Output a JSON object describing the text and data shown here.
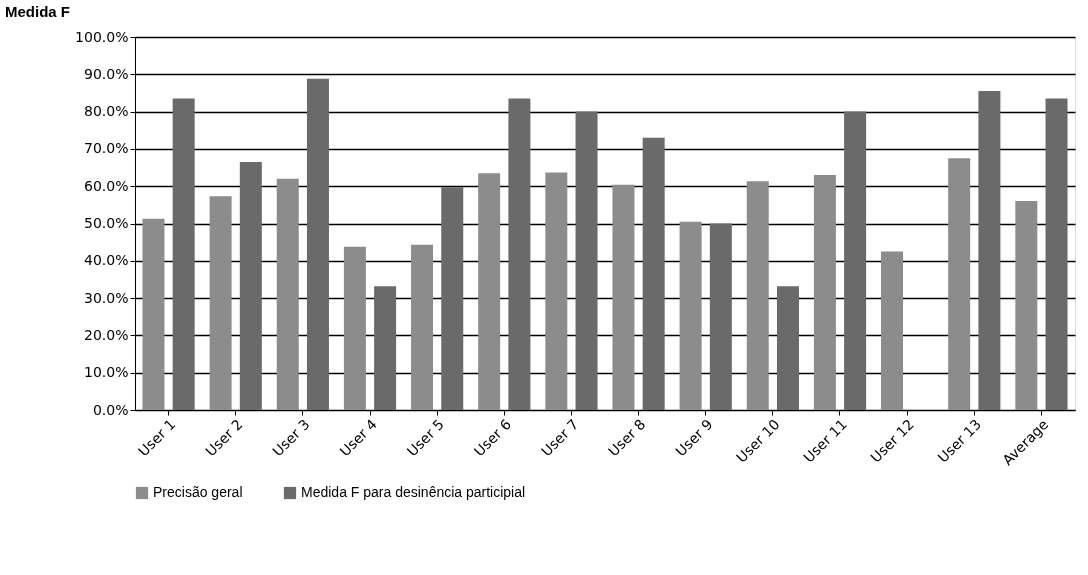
{
  "chart_data": {
    "type": "bar",
    "title": "Medida F",
    "categories": [
      "User 1",
      "User 2",
      "User 3",
      "User 4",
      "User 5",
      "User 6",
      "User 7",
      "User 8",
      "User 9",
      "User 10",
      "User 11",
      "User 12",
      "User 13",
      "Average"
    ],
    "series": [
      {
        "name": "Precisão geral",
        "color": "#8c8c8c",
        "values": [
          51.3,
          57.3,
          62,
          43.8,
          44.3,
          63.5,
          63.7,
          60.4,
          50.5,
          61.3,
          63,
          42.5,
          67.5,
          56
        ]
      },
      {
        "name": "Medida F para desinência participial",
        "color": "#6a6a6a",
        "values": [
          83.5,
          66.5,
          88.8,
          33.2,
          59.7,
          83.5,
          80,
          73,
          50,
          33.2,
          80,
          null,
          85.5,
          83.5
        ]
      }
    ],
    "ylim": [
      0,
      100
    ],
    "yticks": [
      {
        "value": 0,
        "label": "0.0%"
      },
      {
        "value": 10,
        "label": "10.0%"
      },
      {
        "value": 20,
        "label": "20.0%"
      },
      {
        "value": 30,
        "label": "30.0%"
      },
      {
        "value": 40,
        "label": "40.0%"
      },
      {
        "value": 50,
        "label": "50.0%"
      },
      {
        "value": 60,
        "label": "60.0%"
      },
      {
        "value": 70,
        "label": "70.0%"
      },
      {
        "value": 80,
        "label": "80.0%"
      },
      {
        "value": 90,
        "label": "90.0%"
      },
      {
        "value": 100,
        "label": "100.0%"
      }
    ],
    "grid": "y",
    "legend": "bottom"
  }
}
